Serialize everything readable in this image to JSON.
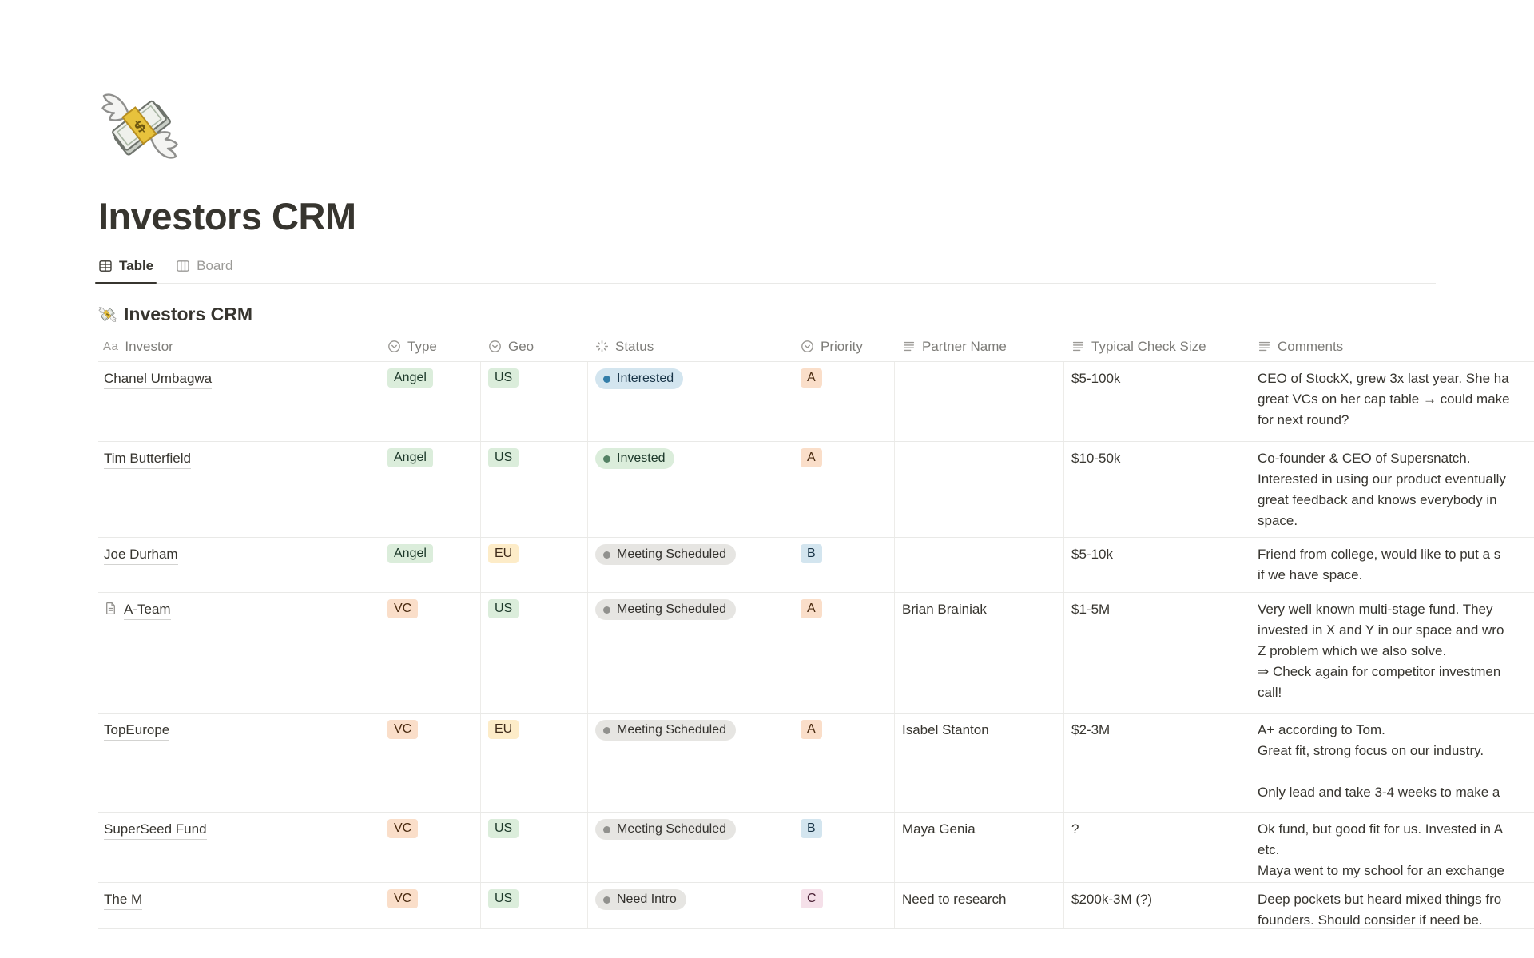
{
  "page": {
    "icon": "money-with-wings-emoji",
    "title": "Investors CRM"
  },
  "tabs": [
    {
      "label": "Table",
      "active": true
    },
    {
      "label": "Board",
      "active": false
    }
  ],
  "view": {
    "icon": "money-with-wings-emoji",
    "title": "Investors CRM"
  },
  "columns": [
    {
      "label": "Investor",
      "icon": "title-property-icon",
      "icon_text": "Aa"
    },
    {
      "label": "Type",
      "icon": "select-property-icon"
    },
    {
      "label": "Geo",
      "icon": "select-property-icon"
    },
    {
      "label": "Status",
      "icon": "status-property-icon"
    },
    {
      "label": "Priority",
      "icon": "select-property-icon"
    },
    {
      "label": "Partner Name",
      "icon": "text-property-icon"
    },
    {
      "label": "Typical Check Size",
      "icon": "text-property-icon"
    },
    {
      "label": "Comments",
      "icon": "text-property-icon"
    }
  ],
  "rows": [
    {
      "investor": "Chanel Umbagwa",
      "page_icon": false,
      "type": {
        "label": "Angel",
        "color": "green"
      },
      "geo": {
        "label": "US",
        "color": "green"
      },
      "status": {
        "label": "Interested",
        "color": "blue",
        "dot": "blue"
      },
      "priority": {
        "label": "A",
        "color": "orange"
      },
      "partner_name": "",
      "check_size": "$5-100k",
      "comments": "CEO of StockX, grew 3x last year. She ha\ngreat VCs on her cap table → could make\nfor next round?"
    },
    {
      "investor": "Tim Butterfield",
      "page_icon": false,
      "type": {
        "label": "Angel",
        "color": "green"
      },
      "geo": {
        "label": "US",
        "color": "green"
      },
      "status": {
        "label": "Invested",
        "color": "green",
        "dot": "green"
      },
      "priority": {
        "label": "A",
        "color": "orange"
      },
      "partner_name": "",
      "check_size": "$10-50k",
      "comments": "Co-founder & CEO of Supersnatch.\nInterested in using our product eventually\ngreat feedback and knows everybody in\nspace."
    },
    {
      "investor": "Joe Durham",
      "page_icon": false,
      "type": {
        "label": "Angel",
        "color": "green"
      },
      "geo": {
        "label": "EU",
        "color": "yellow"
      },
      "status": {
        "label": "Meeting Scheduled",
        "color": "gray",
        "dot": "gray"
      },
      "priority": {
        "label": "B",
        "color": "blue"
      },
      "partner_name": "",
      "check_size": "$5-10k",
      "comments": "Friend from college, would like to put a s\nif we have space."
    },
    {
      "investor": "A-Team",
      "page_icon": true,
      "type": {
        "label": "VC",
        "color": "orange"
      },
      "geo": {
        "label": "US",
        "color": "green"
      },
      "status": {
        "label": "Meeting Scheduled",
        "color": "gray",
        "dot": "gray"
      },
      "priority": {
        "label": "A",
        "color": "orange"
      },
      "partner_name": "Brian Brainiak",
      "check_size": "$1-5M",
      "comments": "Very well known multi-stage fund. They\ninvested in X and Y in our space and wro\nZ problem which we also solve.\n⇒ Check again for competitor investmen\ncall!"
    },
    {
      "investor": "TopEurope",
      "page_icon": false,
      "type": {
        "label": "VC",
        "color": "orange"
      },
      "geo": {
        "label": "EU",
        "color": "yellow"
      },
      "status": {
        "label": "Meeting Scheduled",
        "color": "gray",
        "dot": "gray"
      },
      "priority": {
        "label": "A",
        "color": "orange"
      },
      "partner_name": "Isabel Stanton",
      "check_size": "$2-3M",
      "comments": "A+ according to Tom.\nGreat fit, strong focus on our industry.\n\nOnly lead and take 3-4 weeks to make a"
    },
    {
      "investor": "SuperSeed Fund",
      "page_icon": false,
      "type": {
        "label": "VC",
        "color": "orange"
      },
      "geo": {
        "label": "US",
        "color": "green"
      },
      "status": {
        "label": "Meeting Scheduled",
        "color": "gray",
        "dot": "gray"
      },
      "priority": {
        "label": "B",
        "color": "blue"
      },
      "partner_name": "Maya Genia",
      "check_size": "?",
      "comments": "Ok fund, but good fit for us. Invested in A\netc.\nMaya went to my school for an exchange"
    },
    {
      "investor": "The M",
      "page_icon": false,
      "type": {
        "label": "VC",
        "color": "orange"
      },
      "geo": {
        "label": "US",
        "color": "green"
      },
      "status": {
        "label": "Need Intro",
        "color": "gray",
        "dot": "gray"
      },
      "priority": {
        "label": "C",
        "color": "pink"
      },
      "partner_name": "Need to research",
      "check_size": "$200k-3M (?)",
      "comments": "Deep pockets but heard mixed things fro\nfounders. Should consider if need be."
    }
  ],
  "palette": {
    "text": "#37352F",
    "muted_text": "#787774",
    "divider": "#E9E9E7",
    "tag_green_bg": "#DBEDDB",
    "tag_green_fg": "#1C3829",
    "tag_orange_bg": "#FADEC9",
    "tag_orange_fg": "#49290E",
    "tag_yellow_bg": "#FDECC8",
    "tag_yellow_fg": "#402C1B",
    "tag_blue_bg": "#D3E5EF",
    "tag_blue_fg": "#183447",
    "tag_pink_bg": "#F5E0E9",
    "tag_pink_fg": "#4C2337",
    "tag_gray_bg": "#E6E5E2",
    "tag_gray_fg": "#32302C",
    "dot_blue": "#337EA9",
    "dot_green": "#548164",
    "dot_gray": "#91918E"
  }
}
